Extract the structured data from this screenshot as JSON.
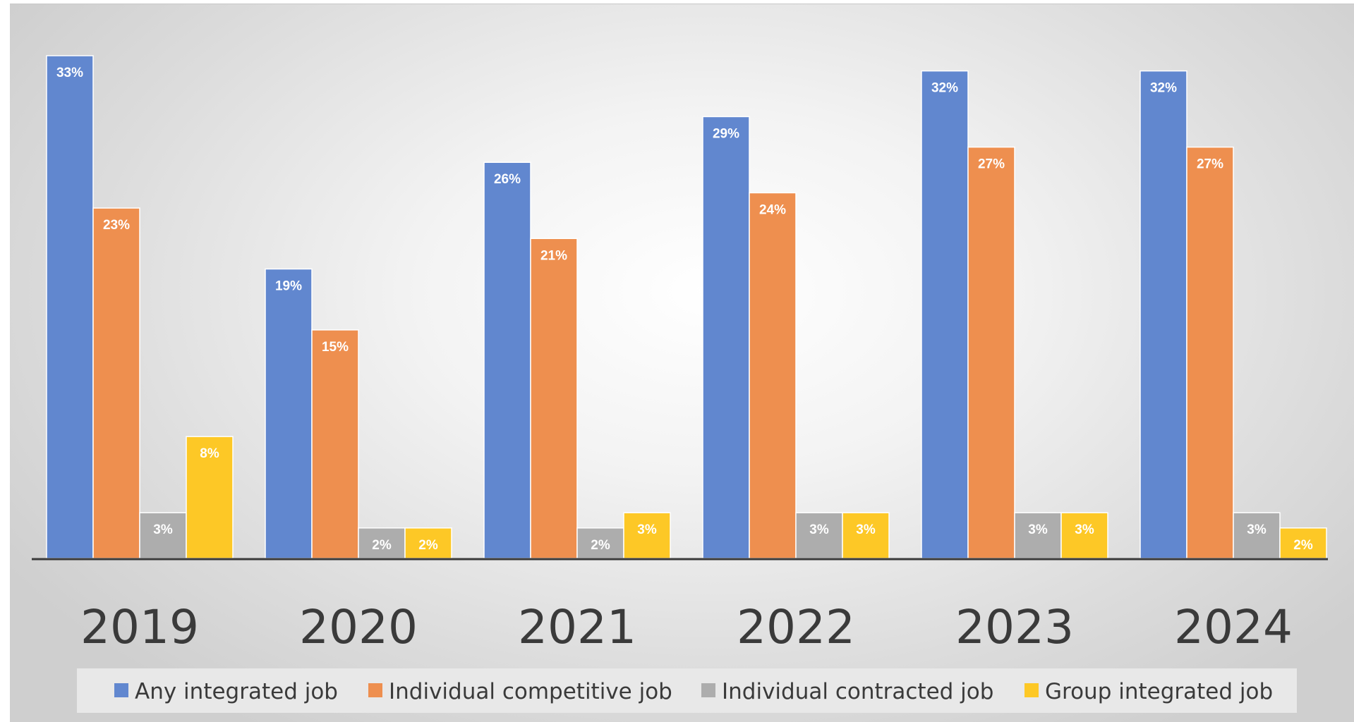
{
  "chart_data": {
    "type": "bar",
    "categories": [
      "2019",
      "2020",
      "2021",
      "2022",
      "2023",
      "2024"
    ],
    "series": [
      {
        "name": "Any integrated job",
        "color": "#6187CF",
        "values": [
          33,
          19,
          26,
          29,
          32,
          32
        ],
        "labels": [
          "33%",
          "19%",
          "26%",
          "29%",
          "32%",
          "32%"
        ]
      },
      {
        "name": "Individual competitive job",
        "color": "#EE8F4F",
        "values": [
          23,
          15,
          21,
          24,
          27,
          27
        ],
        "labels": [
          "23%",
          "15%",
          "21%",
          "24%",
          "27%",
          "27%"
        ]
      },
      {
        "name": "Individual contracted job",
        "color": "#ADADAD",
        "values": [
          3,
          2,
          2,
          3,
          3,
          3
        ],
        "labels": [
          "3%",
          "2%",
          "2%",
          "3%",
          "3%",
          "3%"
        ]
      },
      {
        "name": "Group integrated job",
        "color": "#FDC826",
        "values": [
          8,
          2,
          3,
          3,
          3,
          2
        ],
        "labels": [
          "8%",
          "2%",
          "3%",
          "3%",
          "3%",
          "2%"
        ]
      }
    ],
    "title": "",
    "xlabel": "",
    "ylabel": "",
    "ylim": [
      0,
      33
    ],
    "grid": false,
    "legend": "bottom",
    "axis_color": "#3a3a3a",
    "legend_bg": "#E8E8E8"
  }
}
